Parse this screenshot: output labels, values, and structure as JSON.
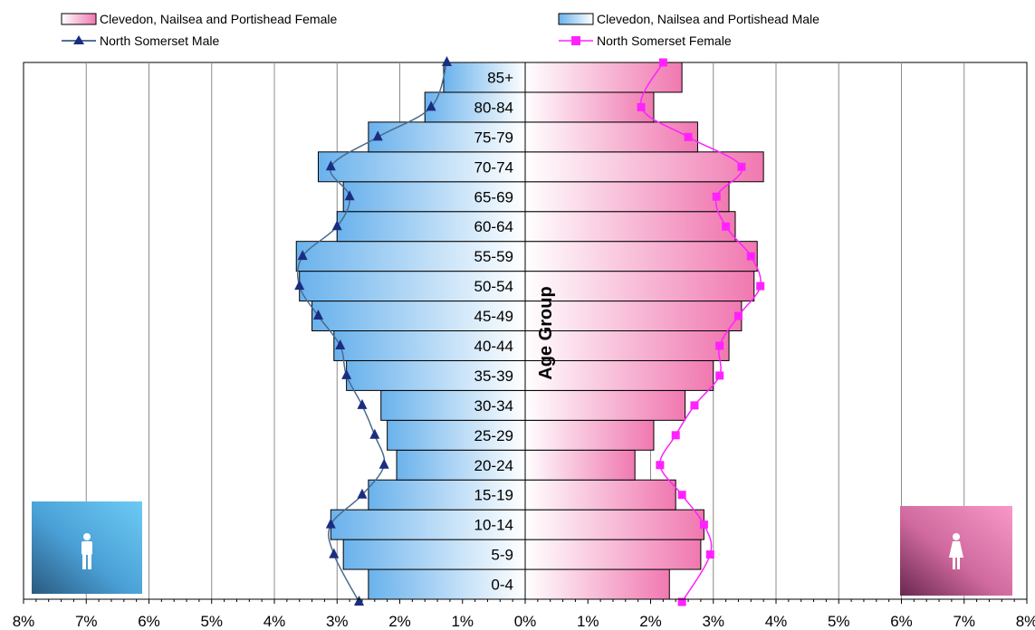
{
  "chart_data": {
    "type": "bar",
    "orientation": "population-pyramid",
    "categories": [
      "0-4",
      "5-9",
      "10-14",
      "15-19",
      "20-24",
      "25-29",
      "30-34",
      "35-39",
      "40-44",
      "45-49",
      "50-54",
      "55-59",
      "60-64",
      "65-69",
      "70-74",
      "75-79",
      "80-84",
      "85+"
    ],
    "ylabel": "Age Group",
    "x_ticks": [
      "8%",
      "7%",
      "6%",
      "5%",
      "4%",
      "3%",
      "2%",
      "1%",
      "0%",
      "1%",
      "2%",
      "3%",
      "4%",
      "5%",
      "6%",
      "7%",
      "8%"
    ],
    "xlim": [
      -8,
      8
    ],
    "grid": true,
    "legend_position": "top",
    "series": [
      {
        "name": "Clevedon, Nailsea and Portishead Female",
        "kind": "bar",
        "side": "right",
        "color": "#f080b0",
        "values": [
          2.3,
          2.8,
          2.85,
          2.4,
          1.75,
          2.05,
          2.55,
          3.0,
          3.25,
          3.45,
          3.65,
          3.7,
          3.35,
          3.25,
          3.8,
          2.75,
          2.05,
          2.5
        ]
      },
      {
        "name": "Clevedon, Nailsea and Portishead Male",
        "kind": "bar",
        "side": "left",
        "color": "#7ab8ee",
        "values": [
          2.5,
          2.9,
          3.1,
          2.5,
          2.05,
          2.2,
          2.3,
          2.85,
          3.05,
          3.4,
          3.6,
          3.65,
          3.0,
          2.9,
          3.3,
          2.5,
          1.6,
          1.3
        ]
      },
      {
        "name": "North Somerset Male",
        "kind": "line",
        "side": "left",
        "color": "#1f3f7f",
        "marker": "triangle",
        "values": [
          2.65,
          3.05,
          3.1,
          2.6,
          2.25,
          2.4,
          2.6,
          2.85,
          2.95,
          3.3,
          3.6,
          3.55,
          3.0,
          2.8,
          3.1,
          2.35,
          1.5,
          1.25
        ]
      },
      {
        "name": "North Somerset Female",
        "kind": "line",
        "side": "right",
        "color": "#ff22ff",
        "marker": "square",
        "values": [
          2.5,
          2.95,
          2.85,
          2.5,
          2.15,
          2.4,
          2.7,
          3.1,
          3.1,
          3.4,
          3.75,
          3.6,
          3.2,
          3.05,
          3.45,
          2.6,
          1.85,
          2.2
        ]
      }
    ]
  },
  "icons": {
    "male": "male-person-icon",
    "female": "female-person-icon"
  },
  "colors": {
    "male_tile": "#4aa6dc",
    "female_tile": "#e070a8",
    "grid": "#8c8c8c"
  }
}
